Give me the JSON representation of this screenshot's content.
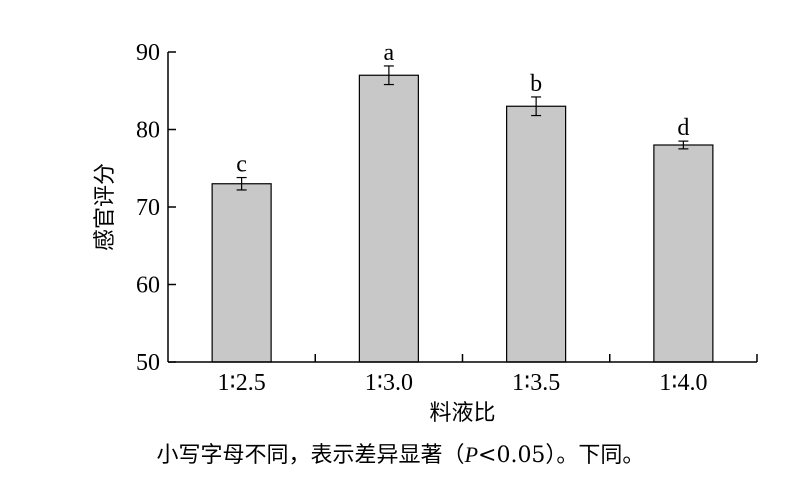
{
  "chart_data": {
    "type": "bar",
    "categories": [
      "1∶2.5",
      "1∶3.0",
      "1∶3.5",
      "1∶4.0"
    ],
    "values": [
      73,
      87,
      83,
      78
    ],
    "errors": [
      0.8,
      1.2,
      1.2,
      0.5
    ],
    "significance_letters": [
      "c",
      "a",
      "b",
      "d"
    ],
    "xlabel": "料液比",
    "ylabel": "感官评分",
    "ylim": [
      50,
      90
    ],
    "yticks": [
      50,
      60,
      70,
      80,
      90
    ],
    "bar_color": "#c8c8c8",
    "grid": false,
    "legend": "none"
  },
  "caption": {
    "before": "小写字母不同，表示差异显著（",
    "italic": "P",
    "after": "<0.05）。下同。"
  }
}
